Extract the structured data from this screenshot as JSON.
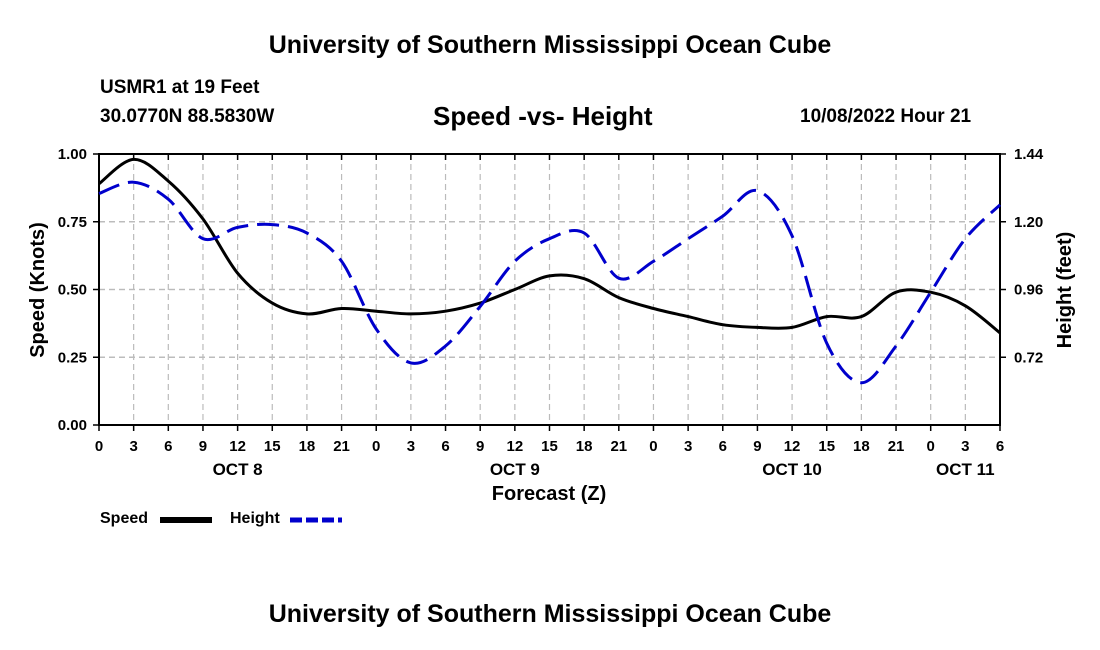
{
  "header": {
    "title": "University of Southern Mississippi Ocean Cube",
    "station": "USMR1 at 19 Feet",
    "coords": "30.0770N  88.5830W",
    "subtitle": "Speed -vs- Height",
    "datetime": "10/08/2022 Hour 21"
  },
  "footer": {
    "title": "University of Southern Mississippi Ocean Cube"
  },
  "chart_data": {
    "type": "line",
    "title": "Speed -vs- Height",
    "xlabel": "Forecast (Z)",
    "ylabel_left": "Speed (Knots)",
    "ylabel_right": "Height (feet)",
    "x_range_hours": [
      0,
      78
    ],
    "ylim_left": [
      0,
      1.0
    ],
    "ylim_right": [
      0.48,
      1.44
    ],
    "left_ticks": [
      "0.00",
      "0.25",
      "0.50",
      "0.75",
      "1.00"
    ],
    "left_tick_values": [
      0,
      0.25,
      0.5,
      0.75,
      1.0
    ],
    "right_ticks": [
      "0.72",
      "0.96",
      "1.20",
      "1.44"
    ],
    "right_tick_values": [
      0.72,
      0.96,
      1.2,
      1.44
    ],
    "x_tick_labels": [
      "0",
      "3",
      "6",
      "9",
      "12",
      "15",
      "18",
      "21",
      "0",
      "3",
      "6",
      "9",
      "12",
      "15",
      "18",
      "21",
      "0",
      "3",
      "6",
      "9",
      "12",
      "15",
      "18",
      "21",
      "0",
      "3",
      "6"
    ],
    "date_labels": [
      {
        "label": "OCT 8",
        "hour": 12
      },
      {
        "label": "OCT 9",
        "hour": 36
      },
      {
        "label": "OCT 10",
        "hour": 60
      },
      {
        "label": "OCT 11",
        "hour": 75
      }
    ],
    "grid": true,
    "legend_position": "bottom-left",
    "series": [
      {
        "name": "Speed",
        "axis": "left",
        "color": "#000000",
        "dash": "solid",
        "x": [
          0,
          3,
          6,
          9,
          12,
          15,
          18,
          21,
          24,
          27,
          30,
          33,
          36,
          39,
          42,
          45,
          48,
          51,
          54,
          57,
          60,
          63,
          66,
          69,
          72,
          75,
          78
        ],
        "values": [
          0.89,
          0.98,
          0.9,
          0.76,
          0.56,
          0.45,
          0.41,
          0.43,
          0.42,
          0.41,
          0.42,
          0.45,
          0.5,
          0.55,
          0.54,
          0.47,
          0.43,
          0.4,
          0.37,
          0.36,
          0.36,
          0.4,
          0.4,
          0.49,
          0.49,
          0.44,
          0.34
        ]
      },
      {
        "name": "Height",
        "axis": "right",
        "color": "#0000cc",
        "dash": "dashed",
        "x": [
          0,
          3,
          6,
          9,
          12,
          15,
          18,
          21,
          24,
          27,
          30,
          33,
          36,
          39,
          42,
          45,
          48,
          51,
          54,
          57,
          60,
          63,
          66,
          69,
          72,
          75,
          78
        ],
        "values": [
          1.3,
          1.34,
          1.28,
          1.14,
          1.18,
          1.19,
          1.16,
          1.06,
          0.82,
          0.7,
          0.76,
          0.9,
          1.06,
          1.14,
          1.16,
          1.0,
          1.06,
          1.14,
          1.22,
          1.31,
          1.15,
          0.77,
          0.63,
          0.76,
          0.95,
          1.14,
          1.26
        ]
      }
    ]
  }
}
